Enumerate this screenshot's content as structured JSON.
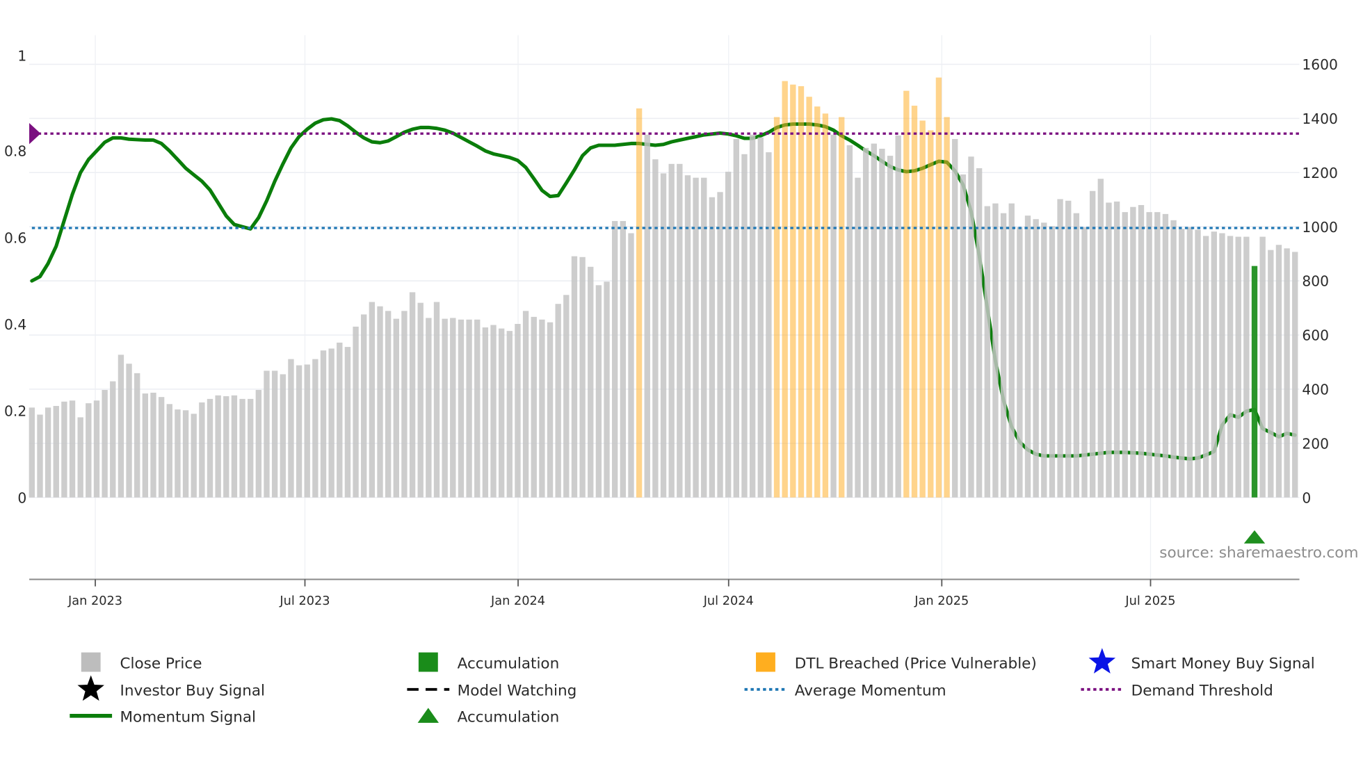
{
  "chart_data": {
    "type": "bar",
    "title": "",
    "source": "source: sharemaestro.com",
    "left_axis": {
      "ticks": [
        0,
        0.2,
        0.4,
        0.6,
        0.8,
        1
      ],
      "tick_labels": [
        "0",
        "0.2",
        "0.4",
        "0.6",
        "0.8",
        "1"
      ],
      "ylim": [
        -0.19,
        1.07
      ]
    },
    "right_axis": {
      "ticks": [
        0,
        200,
        400,
        600,
        800,
        1000,
        1200,
        1400,
        1600
      ],
      "tick_labels": [
        "0",
        "200",
        "400",
        "600",
        "800",
        "1000",
        "1200",
        "1400",
        "1600"
      ],
      "ylim": [
        -304,
        1707
      ]
    },
    "x_axis": {
      "tick_labels": [
        "Jan 2023",
        "Jul 2023",
        "Jan 2024",
        "Jul 2024",
        "Jan 2025",
        "Jul 2025"
      ],
      "frequency": "weekly"
    },
    "grid": true,
    "legend_position": "bottom",
    "series": [
      {
        "name": "Close Price",
        "axis": "right",
        "color": "#c4c4c4",
        "values": [
          332,
          306,
          332,
          338,
          354,
          358,
          296,
          348,
          358,
          397,
          429,
          527,
          494,
          459,
          384,
          387,
          371,
          345,
          325,
          322,
          309,
          351,
          364,
          377,
          374,
          377,
          364,
          364,
          397,
          468,
          468,
          455,
          511,
          488,
          491,
          511,
          543,
          550,
          572,
          556,
          631,
          676,
          722,
          706,
          689,
          660,
          689,
          758,
          719,
          663,
          722,
          660,
          663,
          657,
          657,
          657,
          628,
          637,
          624,
          615,
          641,
          689,
          667,
          657,
          647,
          715,
          748,
          891,
          888,
          852,
          784,
          797,
          1021,
          1021,
          976,
          1437,
          1340,
          1249,
          1197,
          1232,
          1232,
          1190,
          1181,
          1181,
          1109,
          1128,
          1203,
          1324,
          1268,
          1340,
          1330,
          1275,
          1405,
          1538,
          1525,
          1519,
          1480,
          1444,
          1418,
          1340,
          1405,
          1301,
          1181,
          1291,
          1307,
          1288,
          1262,
          1337,
          1502,
          1447,
          1392,
          1356,
          1551,
          1405,
          1324,
          1193,
          1259,
          1216,
          1076,
          1086,
          1050,
          1086,
          998,
          1041,
          1028,
          1015,
          1002,
          1102,
          1096,
          1050,
          998,
          1132,
          1177,
          1089,
          1093,
          1054,
          1073,
          1080,
          1054,
          1054,
          1047,
          1024,
          992,
          998,
          989,
          966,
          982,
          976,
          966,
          963,
          963,
          855,
          963,
          914,
          933,
          920,
          907
        ]
      },
      {
        "name": "DTL Breached (Price Vulnerable)",
        "color": "#ffb02e",
        "bar_indices": [
          75,
          92,
          93,
          94,
          95,
          96,
          97,
          98,
          100,
          108,
          109,
          110,
          111,
          112,
          113
        ]
      },
      {
        "name": "Accumulation",
        "color": "#1f8f1f",
        "bar_indices": [
          151
        ]
      },
      {
        "name": "Momentum Signal",
        "axis": "left",
        "color": "#0a7d0a",
        "values": [
          0.5,
          0.51,
          0.54,
          0.58,
          0.64,
          0.7,
          0.75,
          0.78,
          0.8,
          0.82,
          0.83,
          0.83,
          0.827,
          0.826,
          0.825,
          0.825,
          0.817,
          0.8,
          0.78,
          0.76,
          0.745,
          0.73,
          0.71,
          0.68,
          0.65,
          0.63,
          0.625,
          0.62,
          0.646,
          0.685,
          0.73,
          0.77,
          0.807,
          0.833,
          0.85,
          0.864,
          0.872,
          0.874,
          0.87,
          0.858,
          0.843,
          0.83,
          0.821,
          0.819,
          0.823,
          0.833,
          0.843,
          0.85,
          0.854,
          0.854,
          0.852,
          0.848,
          0.841,
          0.831,
          0.821,
          0.811,
          0.8,
          0.793,
          0.789,
          0.785,
          0.778,
          0.762,
          0.736,
          0.709,
          0.695,
          0.697,
          0.726,
          0.756,
          0.789,
          0.807,
          0.813,
          0.813,
          0.813,
          0.815,
          0.817,
          0.817,
          0.815,
          0.813,
          0.815,
          0.821,
          0.825,
          0.829,
          0.833,
          0.837,
          0.839,
          0.841,
          0.839,
          0.835,
          0.829,
          0.829,
          0.835,
          0.843,
          0.854,
          0.86,
          0.862,
          0.862,
          0.862,
          0.86,
          0.856,
          0.848,
          0.835,
          0.825,
          0.813,
          0.8,
          0.789,
          0.776,
          0.764,
          0.756,
          0.752,
          0.754,
          0.76,
          0.768,
          0.776,
          0.774,
          0.754,
          0.722,
          0.66,
          0.559,
          0.437,
          0.315,
          0.224,
          0.163,
          0.128,
          0.11,
          0.1,
          0.096,
          0.096,
          0.096,
          0.096,
          0.096,
          0.098,
          0.1,
          0.102,
          0.104,
          0.104,
          0.104,
          0.103,
          0.102,
          0.1,
          0.098,
          0.096,
          0.093,
          0.091,
          0.089,
          0.091,
          0.098,
          0.106,
          0.167,
          0.191,
          0.185,
          0.199,
          0.203,
          0.159,
          0.15,
          0.14,
          0.148,
          0.144
        ]
      },
      {
        "name": "Average Momentum",
        "axis": "left",
        "color": "#1f77b4",
        "value": 0.622
      },
      {
        "name": "Demand Threshold",
        "axis": "left",
        "color": "#7b1080",
        "value": 0.84
      },
      {
        "name": "Accumulation marker",
        "type": "triangle",
        "color": "#1f8f1f",
        "bar_index": 151,
        "value": -0.09
      }
    ],
    "legend": [
      {
        "label": "Close Price",
        "icon": "square",
        "color": "#bdbdbd"
      },
      {
        "label": "Accumulation",
        "icon": "square",
        "color": "#1a8c1a"
      },
      {
        "label": "DTL Breached (Price Vulnerable)",
        "icon": "square",
        "color": "#ffae1f"
      },
      {
        "label": "Smart Money Buy Signal",
        "icon": "star",
        "color": "#0a14e6"
      },
      {
        "label": "Investor Buy Signal",
        "icon": "star",
        "color": "#000000"
      },
      {
        "label": "Model Watching",
        "icon": "dash",
        "color": "#000000"
      },
      {
        "label": "Average Momentum",
        "icon": "dot",
        "color": "#1f77b4"
      },
      {
        "label": "Demand Threshold",
        "icon": "dot",
        "color": "#7b1080"
      },
      {
        "label": "Momentum Signal",
        "icon": "line",
        "color": "#0a7d0a"
      },
      {
        "label": "Accumulation",
        "icon": "triangle",
        "color": "#1a8c1a"
      }
    ]
  }
}
